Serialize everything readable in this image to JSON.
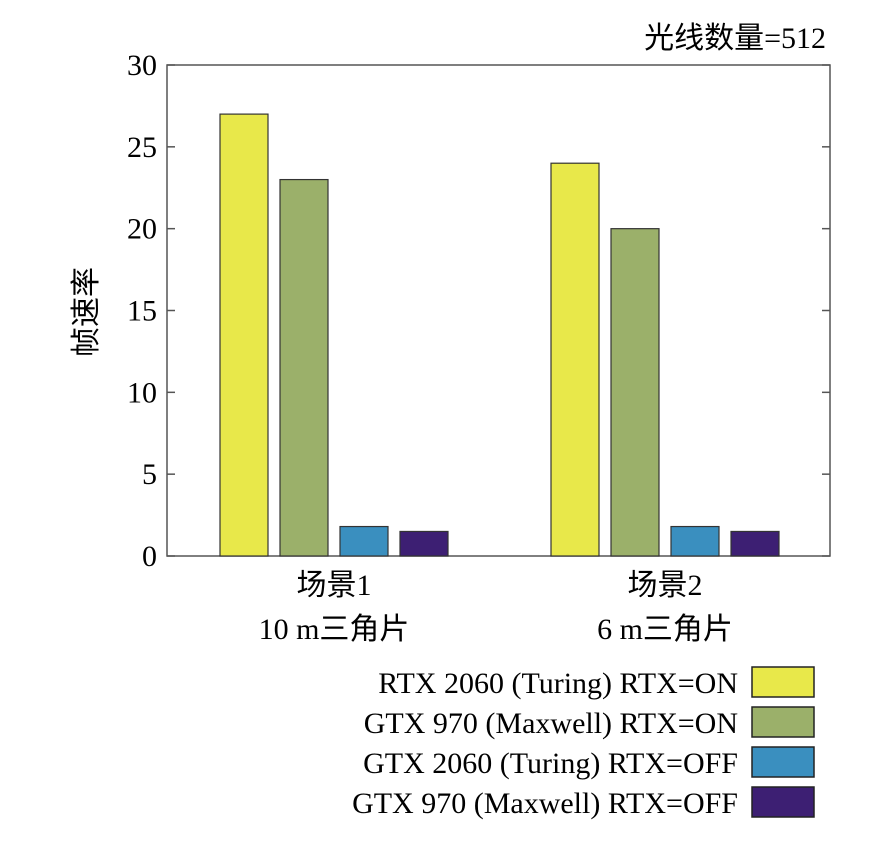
{
  "chart_data": {
    "type": "bar",
    "title": "光线数量=512",
    "ylabel": "帧速率",
    "xlabel": "",
    "ylim": [
      0,
      30
    ],
    "yticks": [
      0,
      5,
      10,
      15,
      20,
      25,
      30
    ],
    "grid": false,
    "legend_position": "bottom-right",
    "categories": [
      [
        "场景1",
        "10 m三角片"
      ],
      [
        "场景2",
        "6 m三角片"
      ]
    ],
    "series": [
      {
        "name": "RTX 2060 (Turing) RTX=ON",
        "color": "#e8e84a",
        "values": [
          27,
          24
        ]
      },
      {
        "name": "GTX 970 (Maxwell) RTX=ON",
        "color": "#9bb06a",
        "values": [
          23,
          20
        ]
      },
      {
        "name": "GTX 2060 (Turing) RTX=OFF",
        "color": "#3a8fbf",
        "values": [
          1.8,
          1.8
        ]
      },
      {
        "name": "GTX 970 (Maxwell) RTX=OFF",
        "color": "#3d1f73",
        "values": [
          1.5,
          1.5
        ]
      }
    ]
  }
}
